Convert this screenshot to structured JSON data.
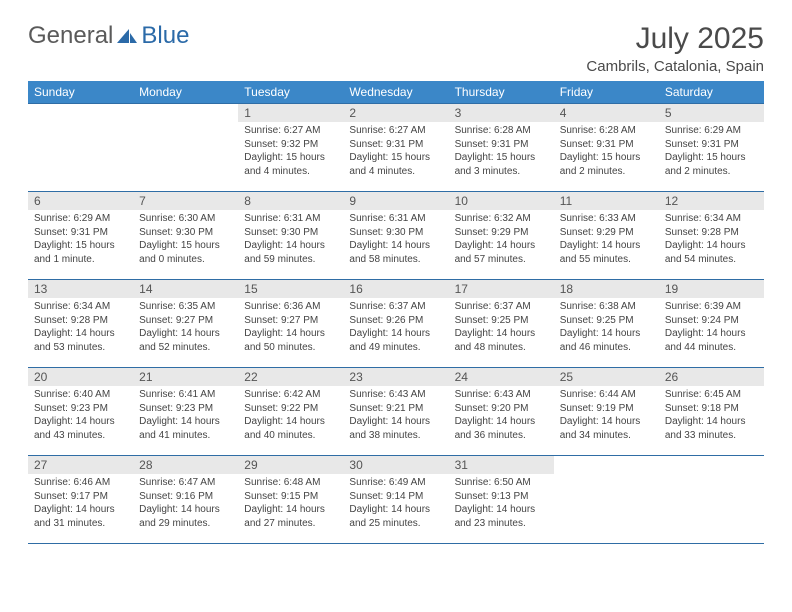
{
  "logo": {
    "general": "General",
    "blue": "Blue"
  },
  "title": "July 2025",
  "location": "Cambrils, Catalonia, Spain",
  "colors": {
    "header_bg": "#3b87c8",
    "header_text": "#ffffff",
    "daynum_bg": "#e8e8e8",
    "rule": "#2f6da5",
    "body_text": "#444444",
    "title_text": "#4a4a4a"
  },
  "weekdays": [
    "Sunday",
    "Monday",
    "Tuesday",
    "Wednesday",
    "Thursday",
    "Friday",
    "Saturday"
  ],
  "weeks": [
    [
      null,
      null,
      {
        "n": "1",
        "sunrise": "Sunrise: 6:27 AM",
        "sunset": "Sunset: 9:32 PM",
        "daylight": "Daylight: 15 hours and 4 minutes."
      },
      {
        "n": "2",
        "sunrise": "Sunrise: 6:27 AM",
        "sunset": "Sunset: 9:31 PM",
        "daylight": "Daylight: 15 hours and 4 minutes."
      },
      {
        "n": "3",
        "sunrise": "Sunrise: 6:28 AM",
        "sunset": "Sunset: 9:31 PM",
        "daylight": "Daylight: 15 hours and 3 minutes."
      },
      {
        "n": "4",
        "sunrise": "Sunrise: 6:28 AM",
        "sunset": "Sunset: 9:31 PM",
        "daylight": "Daylight: 15 hours and 2 minutes."
      },
      {
        "n": "5",
        "sunrise": "Sunrise: 6:29 AM",
        "sunset": "Sunset: 9:31 PM",
        "daylight": "Daylight: 15 hours and 2 minutes."
      }
    ],
    [
      {
        "n": "6",
        "sunrise": "Sunrise: 6:29 AM",
        "sunset": "Sunset: 9:31 PM",
        "daylight": "Daylight: 15 hours and 1 minute."
      },
      {
        "n": "7",
        "sunrise": "Sunrise: 6:30 AM",
        "sunset": "Sunset: 9:30 PM",
        "daylight": "Daylight: 15 hours and 0 minutes."
      },
      {
        "n": "8",
        "sunrise": "Sunrise: 6:31 AM",
        "sunset": "Sunset: 9:30 PM",
        "daylight": "Daylight: 14 hours and 59 minutes."
      },
      {
        "n": "9",
        "sunrise": "Sunrise: 6:31 AM",
        "sunset": "Sunset: 9:30 PM",
        "daylight": "Daylight: 14 hours and 58 minutes."
      },
      {
        "n": "10",
        "sunrise": "Sunrise: 6:32 AM",
        "sunset": "Sunset: 9:29 PM",
        "daylight": "Daylight: 14 hours and 57 minutes."
      },
      {
        "n": "11",
        "sunrise": "Sunrise: 6:33 AM",
        "sunset": "Sunset: 9:29 PM",
        "daylight": "Daylight: 14 hours and 55 minutes."
      },
      {
        "n": "12",
        "sunrise": "Sunrise: 6:34 AM",
        "sunset": "Sunset: 9:28 PM",
        "daylight": "Daylight: 14 hours and 54 minutes."
      }
    ],
    [
      {
        "n": "13",
        "sunrise": "Sunrise: 6:34 AM",
        "sunset": "Sunset: 9:28 PM",
        "daylight": "Daylight: 14 hours and 53 minutes."
      },
      {
        "n": "14",
        "sunrise": "Sunrise: 6:35 AM",
        "sunset": "Sunset: 9:27 PM",
        "daylight": "Daylight: 14 hours and 52 minutes."
      },
      {
        "n": "15",
        "sunrise": "Sunrise: 6:36 AM",
        "sunset": "Sunset: 9:27 PM",
        "daylight": "Daylight: 14 hours and 50 minutes."
      },
      {
        "n": "16",
        "sunrise": "Sunrise: 6:37 AM",
        "sunset": "Sunset: 9:26 PM",
        "daylight": "Daylight: 14 hours and 49 minutes."
      },
      {
        "n": "17",
        "sunrise": "Sunrise: 6:37 AM",
        "sunset": "Sunset: 9:25 PM",
        "daylight": "Daylight: 14 hours and 48 minutes."
      },
      {
        "n": "18",
        "sunrise": "Sunrise: 6:38 AM",
        "sunset": "Sunset: 9:25 PM",
        "daylight": "Daylight: 14 hours and 46 minutes."
      },
      {
        "n": "19",
        "sunrise": "Sunrise: 6:39 AM",
        "sunset": "Sunset: 9:24 PM",
        "daylight": "Daylight: 14 hours and 44 minutes."
      }
    ],
    [
      {
        "n": "20",
        "sunrise": "Sunrise: 6:40 AM",
        "sunset": "Sunset: 9:23 PM",
        "daylight": "Daylight: 14 hours and 43 minutes."
      },
      {
        "n": "21",
        "sunrise": "Sunrise: 6:41 AM",
        "sunset": "Sunset: 9:23 PM",
        "daylight": "Daylight: 14 hours and 41 minutes."
      },
      {
        "n": "22",
        "sunrise": "Sunrise: 6:42 AM",
        "sunset": "Sunset: 9:22 PM",
        "daylight": "Daylight: 14 hours and 40 minutes."
      },
      {
        "n": "23",
        "sunrise": "Sunrise: 6:43 AM",
        "sunset": "Sunset: 9:21 PM",
        "daylight": "Daylight: 14 hours and 38 minutes."
      },
      {
        "n": "24",
        "sunrise": "Sunrise: 6:43 AM",
        "sunset": "Sunset: 9:20 PM",
        "daylight": "Daylight: 14 hours and 36 minutes."
      },
      {
        "n": "25",
        "sunrise": "Sunrise: 6:44 AM",
        "sunset": "Sunset: 9:19 PM",
        "daylight": "Daylight: 14 hours and 34 minutes."
      },
      {
        "n": "26",
        "sunrise": "Sunrise: 6:45 AM",
        "sunset": "Sunset: 9:18 PM",
        "daylight": "Daylight: 14 hours and 33 minutes."
      }
    ],
    [
      {
        "n": "27",
        "sunrise": "Sunrise: 6:46 AM",
        "sunset": "Sunset: 9:17 PM",
        "daylight": "Daylight: 14 hours and 31 minutes."
      },
      {
        "n": "28",
        "sunrise": "Sunrise: 6:47 AM",
        "sunset": "Sunset: 9:16 PM",
        "daylight": "Daylight: 14 hours and 29 minutes."
      },
      {
        "n": "29",
        "sunrise": "Sunrise: 6:48 AM",
        "sunset": "Sunset: 9:15 PM",
        "daylight": "Daylight: 14 hours and 27 minutes."
      },
      {
        "n": "30",
        "sunrise": "Sunrise: 6:49 AM",
        "sunset": "Sunset: 9:14 PM",
        "daylight": "Daylight: 14 hours and 25 minutes."
      },
      {
        "n": "31",
        "sunrise": "Sunrise: 6:50 AM",
        "sunset": "Sunset: 9:13 PM",
        "daylight": "Daylight: 14 hours and 23 minutes."
      },
      null,
      null
    ]
  ]
}
